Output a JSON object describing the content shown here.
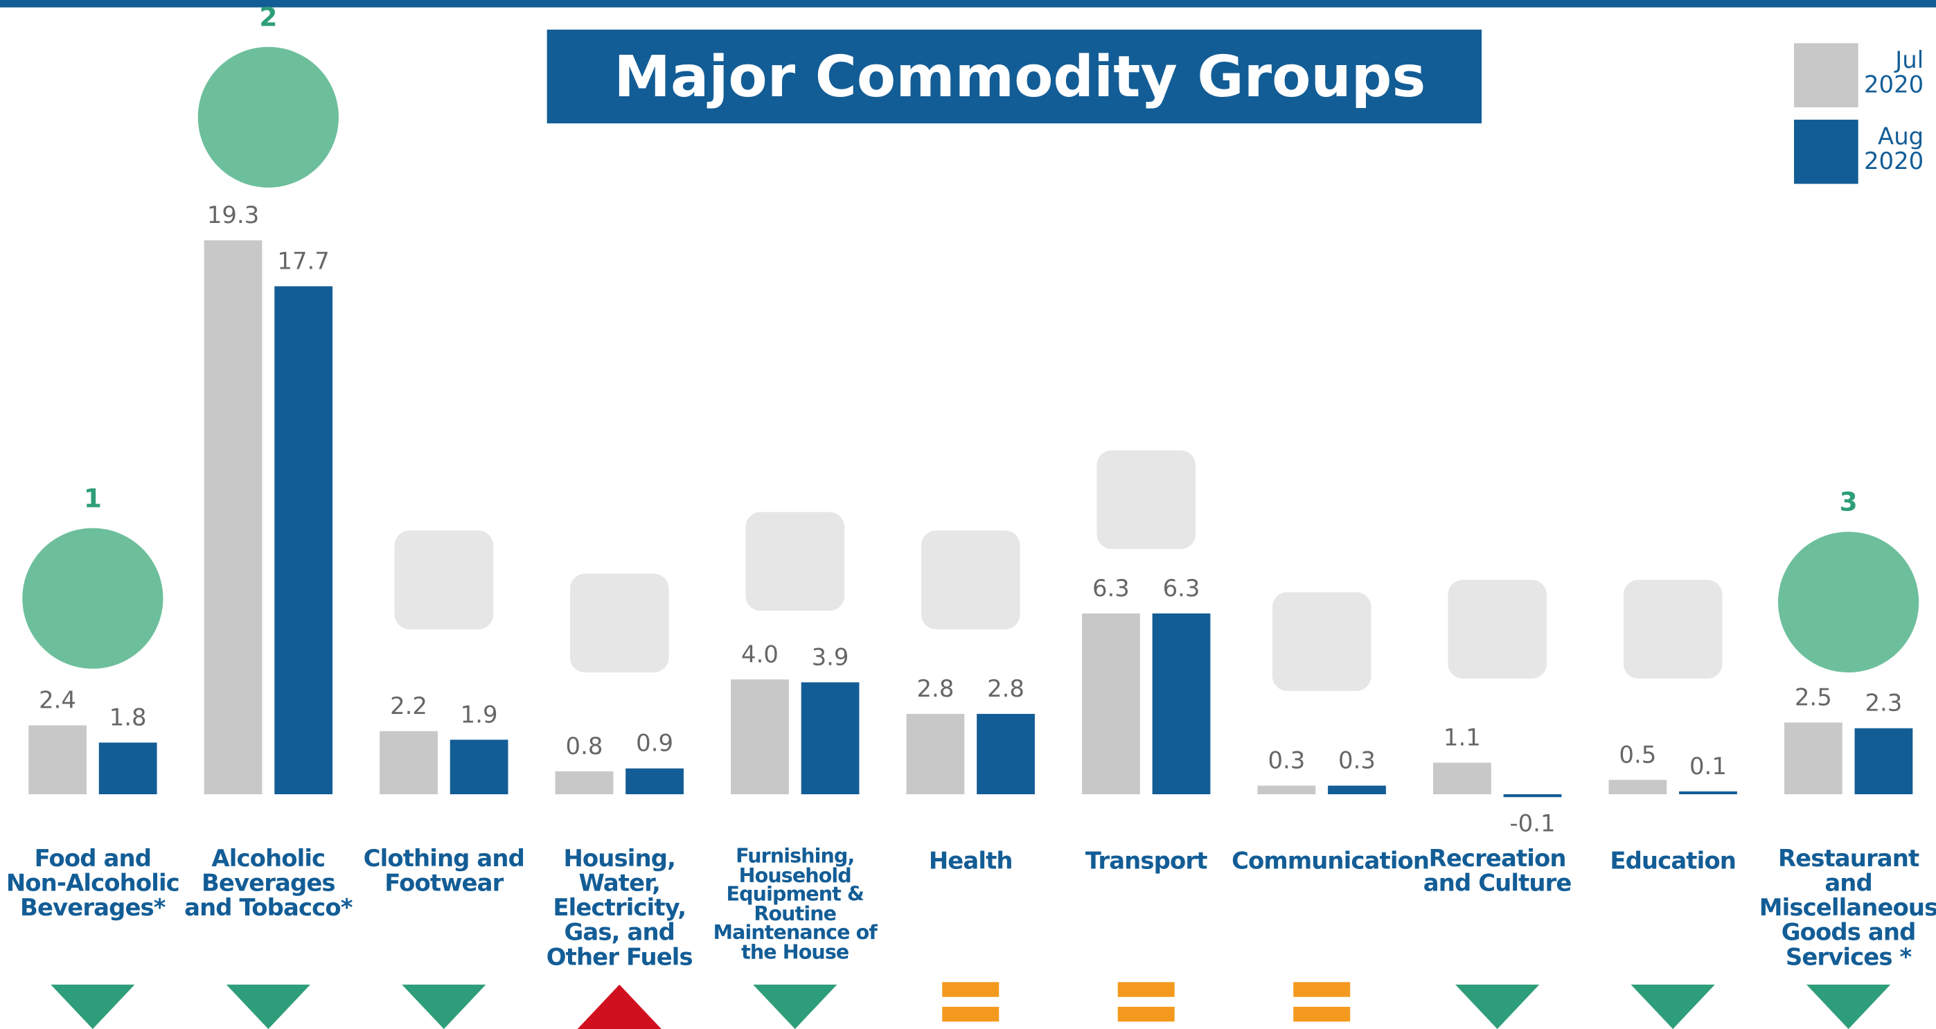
{
  "chart_data": {
    "type": "bar",
    "title": "Major Commodity Groups",
    "categories": [
      "Food and Non-Alcoholic Beverages*",
      "Alcoholic Beverages and Tobacco*",
      "Clothing and Footwear",
      "Housing, Water, Electricity, Gas, and Other Fuels",
      "Furnishing, Household Equipment & Routine Maintenance of the House",
      "Health",
      "Transport",
      "Communication",
      "Recreation and Culture",
      "Education",
      "Restaurant and Miscellaneous Goods and Services *"
    ],
    "series": [
      {
        "name": "Jul 2020",
        "color": "#c8c8c8",
        "values": [
          2.4,
          19.3,
          2.2,
          0.8,
          4.0,
          2.8,
          6.3,
          0.3,
          1.1,
          0.5,
          2.5
        ],
        "value_labels": [
          "2.4",
          "19.3",
          "2.2",
          "0.8",
          "4.0",
          "2.8",
          "6.3",
          "0.3",
          "1.1",
          "0.5",
          "2.5"
        ]
      },
      {
        "name": "Aug 2020",
        "color": "#135d96",
        "values": [
          1.8,
          17.7,
          1.9,
          0.9,
          3.9,
          2.8,
          6.3,
          0.3,
          -0.1,
          0.1,
          2.3
        ],
        "value_labels": [
          "1.8",
          "17.7",
          "1.9",
          "0.9",
          "3.9",
          "2.8",
          "6.3",
          "0.3",
          "-0.1",
          "0.1",
          "2.3"
        ]
      }
    ],
    "ranks": [
      1,
      2,
      null,
      null,
      null,
      null,
      null,
      null,
      null,
      null,
      3
    ],
    "ylim": [
      -1,
      22
    ],
    "legend": "top-right"
  }
}
